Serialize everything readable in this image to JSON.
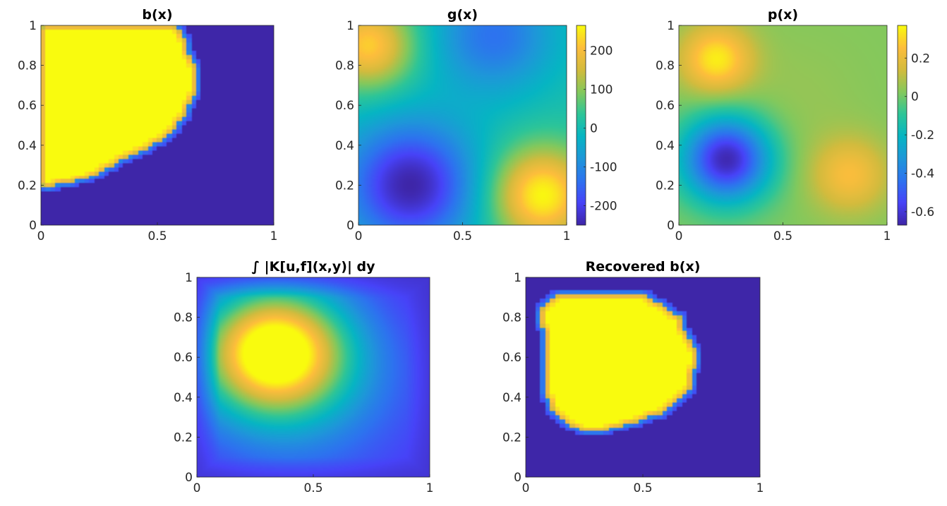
{
  "colors": {
    "parula": [
      "#3e26a8",
      "#4743f8",
      "#2d73ef",
      "#1e97d9",
      "#06b5c3",
      "#2dc598",
      "#84c85c",
      "#d3bb3d",
      "#fdbd3c",
      "#f9fb0e"
    ]
  },
  "chart_data": [
    {
      "type": "heatmap",
      "title": "b(x)",
      "xlim": [
        0,
        1
      ],
      "ylim": [
        0,
        1
      ],
      "xticks": [
        "0",
        "0.5",
        "1"
      ],
      "yticks": [
        "0",
        "0.2",
        "0.4",
        "0.6",
        "0.8",
        "1"
      ],
      "colorbar": false,
      "clim": [
        0,
        1
      ],
      "field": {
        "kind": "mask",
        "boundary": [
          [
            0,
            0.18
          ],
          [
            0.2,
            0.23
          ],
          [
            0.35,
            0.33
          ],
          [
            0.45,
            0.38
          ],
          [
            0.55,
            0.45
          ],
          [
            0.62,
            0.56
          ],
          [
            0.66,
            0.65
          ],
          [
            0.66,
            0.8
          ],
          [
            0.63,
            0.86
          ],
          [
            0.61,
            0.95
          ],
          [
            0.57,
            1.0
          ],
          [
            0,
            1.0
          ]
        ]
      }
    },
    {
      "type": "heatmap",
      "title": "g(x)",
      "xlim": [
        0,
        1
      ],
      "ylim": [
        0,
        1
      ],
      "xticks": [
        "0",
        "0.5",
        "1"
      ],
      "yticks": [
        "0",
        "0.2",
        "0.4",
        "0.6",
        "0.8",
        "1"
      ],
      "colorbar": true,
      "colorbar_ticks": [
        "-200",
        "-100",
        "0",
        "100",
        "200"
      ],
      "colorbar_tick_values": [
        -200,
        -100,
        0,
        100,
        200
      ],
      "clim": [
        -250,
        265
      ],
      "field": {
        "kind": "gaussians",
        "base": 10,
        "bumps": [
          {
            "x": 0.25,
            "y": 0.2,
            "a": -260,
            "s": 0.22
          },
          {
            "x": 0.88,
            "y": 0.15,
            "a": 255,
            "s": 0.17
          },
          {
            "x": 0.05,
            "y": 0.9,
            "a": 215,
            "s": 0.15
          },
          {
            "x": 0.65,
            "y": 0.95,
            "a": -145,
            "s": 0.2
          }
        ]
      }
    },
    {
      "type": "heatmap",
      "title": "p(x)",
      "xlim": [
        0,
        1
      ],
      "ylim": [
        0,
        1
      ],
      "xticks": [
        "0",
        "0.5",
        "1"
      ],
      "yticks": [
        "0",
        "0.2",
        "0.4",
        "0.6",
        "0.8",
        "1"
      ],
      "colorbar": true,
      "colorbar_ticks": [
        "-0.6",
        "-0.4",
        "-0.2",
        "0",
        "0.2"
      ],
      "colorbar_tick_values": [
        -0.6,
        -0.4,
        -0.2,
        0,
        0.2
      ],
      "clim": [
        -0.67,
        0.37
      ],
      "field": {
        "kind": "gaussians",
        "base": 0.02,
        "bumps": [
          {
            "x": 0.23,
            "y": 0.33,
            "a": -0.68,
            "s": 0.15
          },
          {
            "x": 0.18,
            "y": 0.83,
            "a": 0.32,
            "s": 0.12
          },
          {
            "x": 0.82,
            "y": 0.25,
            "a": 0.22,
            "s": 0.13
          },
          {
            "x": 0.55,
            "y": 0.62,
            "a": 0.03,
            "s": 0.25
          }
        ]
      }
    },
    {
      "type": "heatmap",
      "title": "∫ |K[u,f](x,y)| dy",
      "xlim": [
        0,
        1
      ],
      "ylim": [
        0,
        1
      ],
      "xticks": [
        "0",
        "0.5",
        "1"
      ],
      "yticks": [
        "0",
        "0.2",
        "0.4",
        "0.6",
        "0.8",
        "1"
      ],
      "colorbar": false,
      "clim": [
        0,
        1
      ],
      "field": {
        "kind": "gaussians",
        "base": 0.05,
        "bumps": [
          {
            "x": 0.33,
            "y": 0.63,
            "a": 0.95,
            "s": 0.22
          },
          {
            "x": 0.45,
            "y": 0.45,
            "a": 0.22,
            "s": 0.35
          }
        ],
        "edge_fade": 0.1
      }
    },
    {
      "type": "heatmap",
      "title": "Recovered b(x)",
      "xlim": [
        0,
        1
      ],
      "ylim": [
        0,
        1
      ],
      "xticks": [
        "0",
        "0.5",
        "1"
      ],
      "yticks": [
        "0",
        "0.2",
        "0.4",
        "0.6",
        "0.8",
        "1"
      ],
      "colorbar": false,
      "clim": [
        0,
        1
      ],
      "field": {
        "kind": "mask",
        "boundary": [
          [
            0.26,
            0.23
          ],
          [
            0.33,
            0.23
          ],
          [
            0.5,
            0.29
          ],
          [
            0.57,
            0.32
          ],
          [
            0.65,
            0.39
          ],
          [
            0.7,
            0.45
          ],
          [
            0.72,
            0.54
          ],
          [
            0.72,
            0.65
          ],
          [
            0.68,
            0.72
          ],
          [
            0.66,
            0.8
          ],
          [
            0.5,
            0.92
          ],
          [
            0.15,
            0.92
          ],
          [
            0.1,
            0.89
          ],
          [
            0.07,
            0.86
          ],
          [
            0.08,
            0.5
          ],
          [
            0.1,
            0.35
          ],
          [
            0.15,
            0.29
          ],
          [
            0.2,
            0.25
          ]
        ]
      }
    }
  ]
}
